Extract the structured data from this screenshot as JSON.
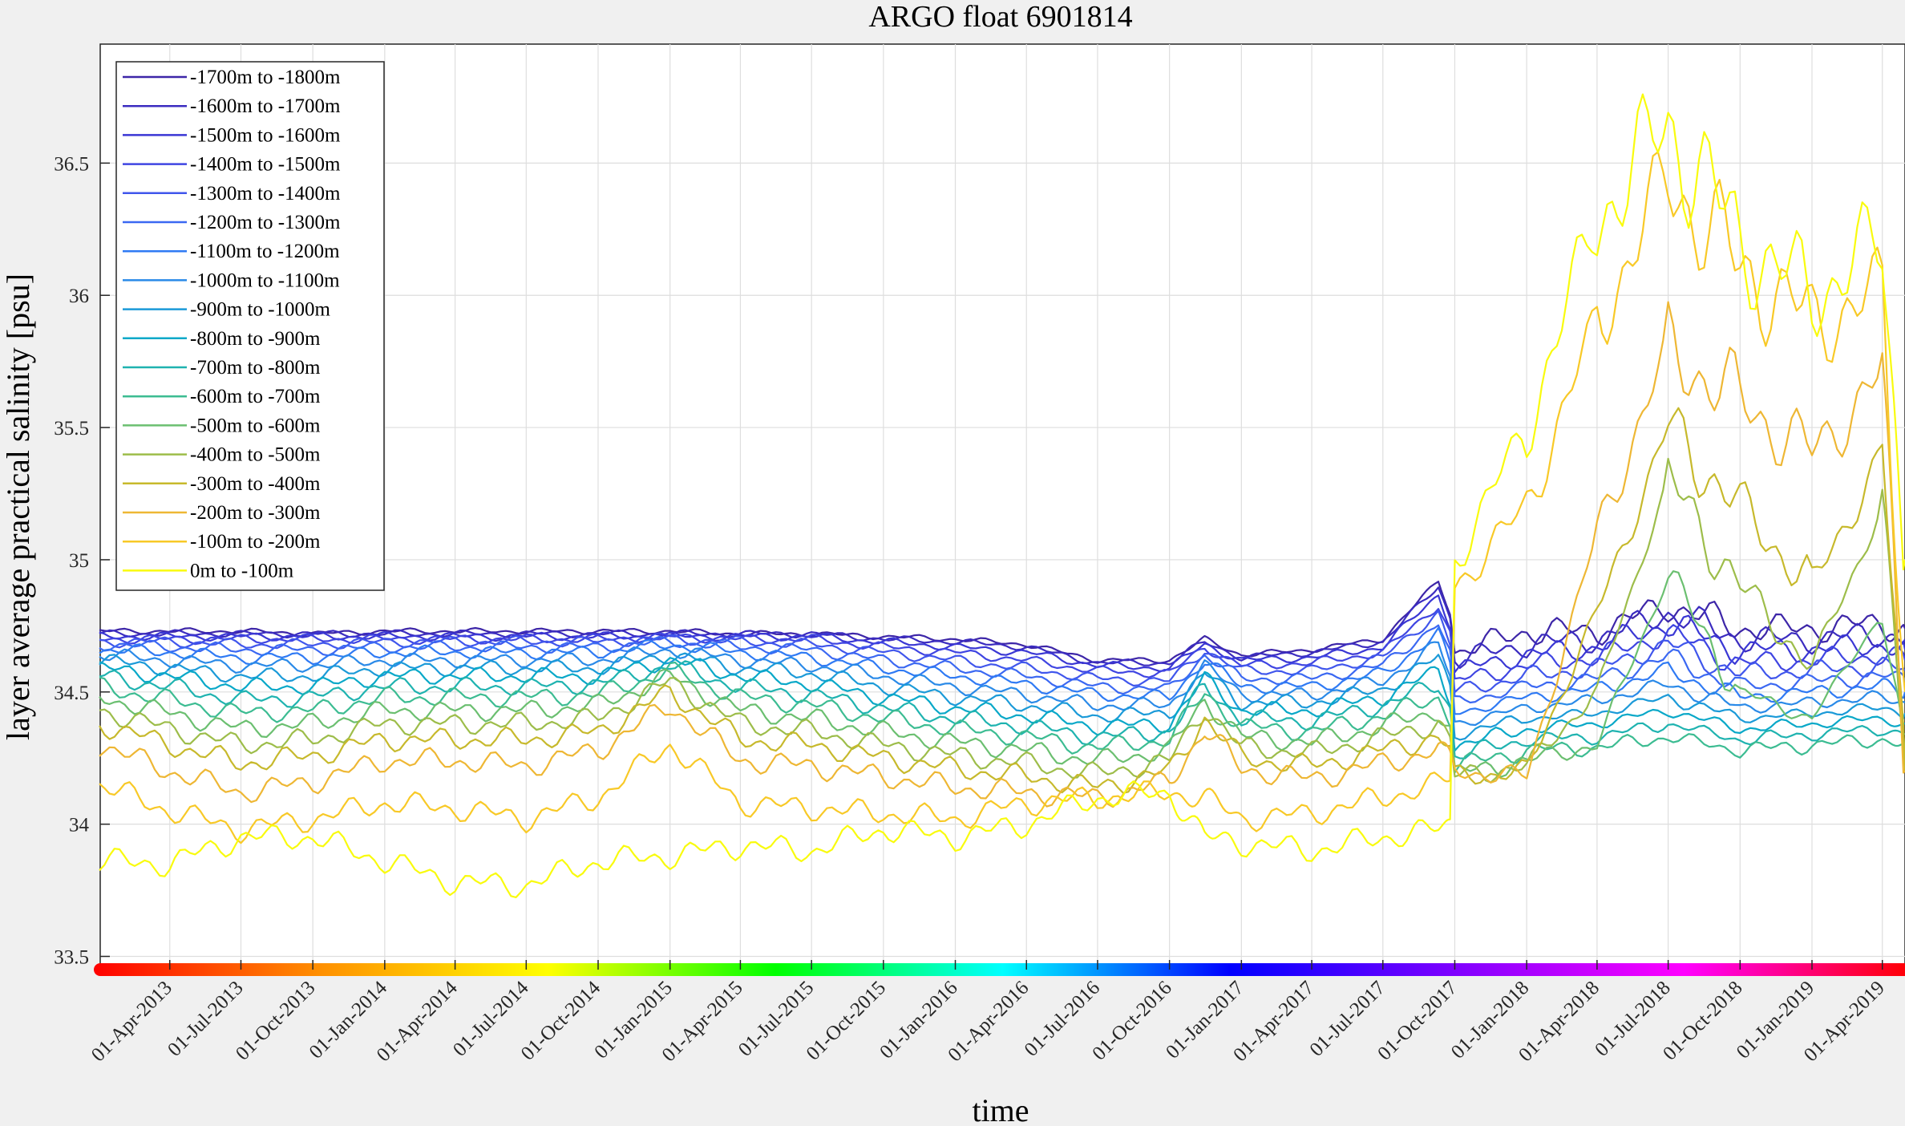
{
  "chart_data": {
    "type": "line",
    "title": "ARGO float 6901814",
    "xlabel": "time",
    "ylabel": "layer average practical salinity [psu]",
    "ylim": [
      33.45,
      36.95
    ],
    "xlim": [
      "2013-01-02",
      "2019-04-30"
    ],
    "grid": true,
    "legend_position": "top-left",
    "y_ticks": [
      "33.5",
      "34",
      "34.5",
      "35",
      "35.5",
      "36",
      "36.5"
    ],
    "x_ticks": [
      "01-Apr-2013",
      "01-Jul-2013",
      "01-Oct-2013",
      "01-Jan-2014",
      "01-Apr-2014",
      "01-Jul-2014",
      "01-Oct-2014",
      "01-Jan-2015",
      "01-Apr-2015",
      "01-Jul-2015",
      "01-Oct-2015",
      "01-Jan-2016",
      "01-Apr-2016",
      "01-Jul-2016",
      "01-Oct-2016",
      "01-Jan-2017",
      "01-Apr-2017",
      "01-Jul-2017",
      "01-Oct-2017",
      "01-Jan-2018",
      "01-Apr-2018",
      "01-Jul-2018",
      "01-Oct-2018",
      "01-Jan-2019",
      "01-Apr-2019"
    ],
    "x": [
      "2013-01-01",
      "2013-04-01",
      "2013-07-01",
      "2013-10-01",
      "2014-01-01",
      "2014-04-01",
      "2014-07-01",
      "2014-10-01",
      "2015-01-01",
      "2015-04-01",
      "2015-07-01",
      "2015-10-01",
      "2016-01-01",
      "2016-04-01",
      "2016-07-01",
      "2016-10-01",
      "2016-11-15",
      "2017-01-01",
      "2017-04-01",
      "2017-07-01",
      "2017-09-10",
      "2017-09-25",
      "2017-10-01",
      "2018-01-01",
      "2018-04-01",
      "2018-07-01",
      "2018-10-01",
      "2019-01-01",
      "2019-04-01",
      "2019-04-30"
    ],
    "series": [
      {
        "name": "-1700m to -1800m",
        "color": "#3d26a8",
        "values": [
          34.73,
          34.73,
          34.73,
          34.72,
          34.73,
          34.73,
          34.73,
          34.73,
          34.73,
          34.72,
          34.72,
          34.71,
          34.7,
          34.68,
          34.62,
          34.62,
          34.7,
          34.64,
          34.66,
          34.7,
          34.92,
          34.8,
          34.65,
          34.73,
          34.73,
          34.83,
          34.74,
          34.74,
          34.76,
          34.74
        ]
      },
      {
        "name": "-1600m to -1700m",
        "color": "#3b2cc0",
        "values": [
          34.72,
          34.72,
          34.72,
          34.72,
          34.72,
          34.72,
          34.72,
          34.72,
          34.72,
          34.72,
          34.72,
          34.7,
          34.69,
          34.67,
          34.61,
          34.61,
          34.69,
          34.63,
          34.65,
          34.69,
          34.9,
          34.78,
          34.62,
          34.68,
          34.7,
          34.8,
          34.7,
          34.7,
          34.72,
          34.7
        ]
      },
      {
        "name": "-1500m to -1600m",
        "color": "#3a37d4",
        "values": [
          34.71,
          34.71,
          34.71,
          34.71,
          34.71,
          34.71,
          34.71,
          34.71,
          34.71,
          34.71,
          34.71,
          34.69,
          34.67,
          34.65,
          34.6,
          34.59,
          34.68,
          34.62,
          34.63,
          34.67,
          34.87,
          34.75,
          34.58,
          34.64,
          34.67,
          34.76,
          34.66,
          34.66,
          34.68,
          34.66
        ]
      },
      {
        "name": "-1400m to -1500m",
        "color": "#3f45e2",
        "values": [
          34.7,
          34.7,
          34.7,
          34.7,
          34.7,
          34.7,
          34.7,
          34.7,
          34.71,
          34.7,
          34.7,
          34.67,
          34.65,
          34.62,
          34.58,
          34.57,
          34.67,
          34.6,
          34.61,
          34.65,
          34.83,
          34.72,
          34.54,
          34.6,
          34.63,
          34.72,
          34.61,
          34.62,
          34.64,
          34.62
        ]
      },
      {
        "name": "-1300m to -1400m",
        "color": "#4056ec",
        "values": [
          34.69,
          34.69,
          34.68,
          34.68,
          34.69,
          34.69,
          34.69,
          34.69,
          34.7,
          34.69,
          34.68,
          34.65,
          34.62,
          34.59,
          34.55,
          34.54,
          34.66,
          34.58,
          34.58,
          34.63,
          34.8,
          34.68,
          34.5,
          34.56,
          34.59,
          34.68,
          34.57,
          34.58,
          34.6,
          34.58
        ]
      },
      {
        "name": "-1200m to -1300m",
        "color": "#3b68f2",
        "values": [
          34.68,
          34.67,
          34.66,
          34.66,
          34.67,
          34.67,
          34.67,
          34.67,
          34.69,
          34.67,
          34.66,
          34.62,
          34.59,
          34.56,
          34.52,
          34.51,
          34.64,
          34.55,
          34.55,
          34.6,
          34.76,
          34.64,
          34.46,
          34.52,
          34.55,
          34.63,
          34.52,
          34.54,
          34.56,
          34.54
        ]
      },
      {
        "name": "-1100m to -1200m",
        "color": "#2f7af4",
        "values": [
          34.66,
          34.65,
          34.63,
          34.63,
          34.65,
          34.65,
          34.65,
          34.65,
          34.68,
          34.65,
          34.63,
          34.59,
          34.56,
          34.53,
          34.49,
          34.48,
          34.62,
          34.52,
          34.52,
          34.57,
          34.72,
          34.6,
          34.42,
          34.48,
          34.51,
          34.58,
          34.48,
          34.5,
          34.52,
          34.5
        ]
      },
      {
        "name": "-1000m to -1100m",
        "color": "#2a8ae8",
        "values": [
          34.64,
          34.62,
          34.6,
          34.6,
          34.62,
          34.62,
          34.62,
          34.62,
          34.66,
          34.62,
          34.6,
          34.56,
          34.52,
          34.49,
          34.45,
          34.45,
          34.6,
          34.49,
          34.49,
          34.54,
          34.68,
          34.56,
          34.38,
          34.44,
          34.47,
          34.53,
          34.44,
          34.46,
          34.48,
          34.46
        ]
      },
      {
        "name": "-900m to -1000m",
        "color": "#1b9ad8",
        "values": [
          34.62,
          34.59,
          34.56,
          34.56,
          34.59,
          34.59,
          34.59,
          34.59,
          34.64,
          34.59,
          34.57,
          34.52,
          34.48,
          34.45,
          34.41,
          34.42,
          34.57,
          34.46,
          34.46,
          34.51,
          34.63,
          34.52,
          34.34,
          34.4,
          34.42,
          34.48,
          34.4,
          34.42,
          34.44,
          34.42
        ]
      },
      {
        "name": "-800m to -900m",
        "color": "#09a8c8",
        "values": [
          34.59,
          34.56,
          34.52,
          34.52,
          34.56,
          34.56,
          34.56,
          34.56,
          34.62,
          34.56,
          34.53,
          34.48,
          34.44,
          34.41,
          34.37,
          34.38,
          34.55,
          34.43,
          34.43,
          34.48,
          34.58,
          34.48,
          34.3,
          34.36,
          34.38,
          34.43,
          34.36,
          34.38,
          34.4,
          34.38
        ]
      },
      {
        "name": "-700m to -800m",
        "color": "#1fb3b0",
        "values": [
          34.56,
          34.52,
          34.47,
          34.48,
          34.52,
          34.52,
          34.52,
          34.53,
          34.6,
          34.52,
          34.49,
          34.44,
          34.4,
          34.37,
          34.33,
          34.35,
          34.52,
          34.4,
          34.39,
          34.45,
          34.53,
          34.44,
          34.26,
          34.32,
          34.33,
          34.38,
          34.32,
          34.34,
          34.36,
          34.34
        ]
      },
      {
        "name": "-600m to -700m",
        "color": "#3cbc92",
        "values": [
          34.52,
          34.47,
          34.42,
          34.43,
          34.48,
          34.48,
          34.48,
          34.49,
          34.58,
          34.48,
          34.45,
          34.4,
          34.36,
          34.33,
          34.29,
          34.32,
          34.5,
          34.37,
          34.35,
          34.41,
          34.48,
          34.4,
          34.22,
          34.28,
          34.29,
          34.33,
          34.28,
          34.3,
          34.32,
          34.3
        ]
      },
      {
        "name": "-500m to -600m",
        "color": "#6bbf70",
        "values": [
          34.48,
          34.42,
          34.36,
          34.38,
          34.43,
          34.43,
          34.43,
          34.45,
          34.56,
          34.43,
          34.4,
          34.35,
          34.31,
          34.28,
          34.24,
          34.28,
          34.47,
          34.33,
          34.31,
          34.37,
          34.43,
          34.36,
          34.19,
          34.24,
          34.3,
          34.94,
          34.5,
          34.4,
          34.8,
          34.25
        ]
      },
      {
        "name": "-400m to -500m",
        "color": "#9dbd4a",
        "values": [
          34.43,
          34.36,
          34.3,
          34.32,
          34.38,
          34.38,
          34.38,
          34.4,
          34.54,
          34.38,
          34.35,
          34.3,
          34.26,
          34.23,
          34.19,
          34.24,
          34.44,
          34.29,
          34.27,
          34.33,
          34.38,
          34.32,
          34.18,
          34.22,
          34.5,
          35.3,
          34.9,
          34.6,
          35.2,
          34.22
        ]
      },
      {
        "name": "-300m to -400m",
        "color": "#c7b92c",
        "values": [
          34.38,
          34.3,
          34.23,
          34.26,
          34.32,
          34.32,
          34.32,
          34.35,
          34.5,
          34.32,
          34.3,
          34.25,
          34.21,
          34.18,
          34.14,
          34.2,
          34.4,
          34.25,
          34.22,
          34.28,
          34.33,
          34.28,
          34.18,
          34.2,
          34.8,
          35.5,
          35.2,
          34.9,
          35.4,
          34.2
        ]
      },
      {
        "name": "-200m to -300m",
        "color": "#eeb734",
        "values": [
          34.3,
          34.2,
          34.12,
          34.16,
          34.24,
          34.24,
          34.22,
          34.28,
          34.45,
          34.24,
          34.22,
          34.18,
          34.14,
          34.12,
          34.1,
          34.16,
          34.36,
          34.21,
          34.17,
          34.23,
          34.28,
          34.24,
          34.2,
          34.18,
          35.1,
          35.8,
          35.6,
          35.4,
          35.7,
          34.2
        ]
      },
      {
        "name": "-100m to -200m",
        "color": "#f8c927",
        "values": [
          34.15,
          34.05,
          33.98,
          34.02,
          34.08,
          34.06,
          34.02,
          34.1,
          34.3,
          34.08,
          34.06,
          34.04,
          34.02,
          34.08,
          34.1,
          34.12,
          34.1,
          34.02,
          34.04,
          34.1,
          34.15,
          34.18,
          34.9,
          35.2,
          35.9,
          36.45,
          36.1,
          35.9,
          36.0,
          34.5
        ]
      },
      {
        "name": "0m to -100m",
        "color": "#f9fb0e",
        "values": [
          33.86,
          33.85,
          33.95,
          33.95,
          33.86,
          33.78,
          33.77,
          33.86,
          33.88,
          33.92,
          33.9,
          33.98,
          33.95,
          34.0,
          34.1,
          34.12,
          33.95,
          33.93,
          33.9,
          33.95,
          33.98,
          34.0,
          35.0,
          35.5,
          36.3,
          36.65,
          36.2,
          36.0,
          36.2,
          35.0
        ]
      }
    ]
  }
}
